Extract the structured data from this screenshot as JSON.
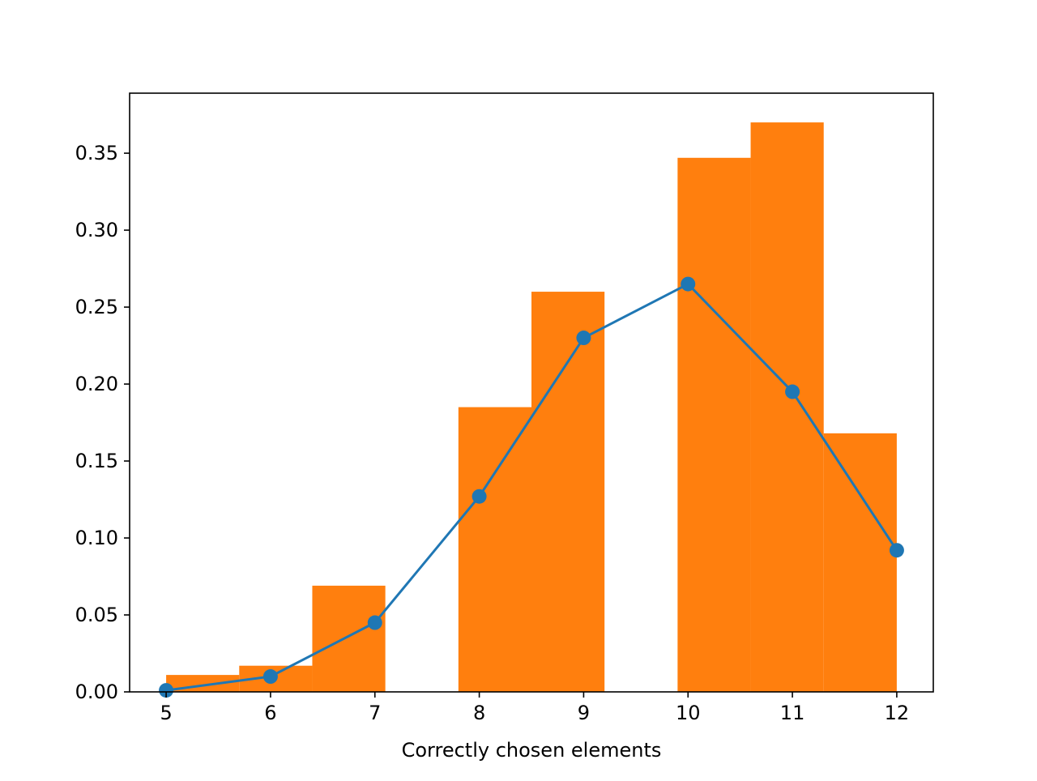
{
  "chart_data": {
    "type": "bar",
    "title": "",
    "xlabel": "Correctly chosen elements",
    "ylabel": "",
    "xlim": [
      4.65,
      12.35
    ],
    "ylim": [
      0,
      0.389
    ],
    "grid": false,
    "x_ticks": [
      {
        "value": 5,
        "label": "5"
      },
      {
        "value": 6,
        "label": "6"
      },
      {
        "value": 7,
        "label": "7"
      },
      {
        "value": 8,
        "label": "8"
      },
      {
        "value": 9,
        "label": "9"
      },
      {
        "value": 10,
        "label": "10"
      },
      {
        "value": 11,
        "label": "11"
      },
      {
        "value": 12,
        "label": "12"
      }
    ],
    "y_ticks": [
      {
        "value": 0.0,
        "label": "0.00"
      },
      {
        "value": 0.05,
        "label": "0.05"
      },
      {
        "value": 0.1,
        "label": "0.10"
      },
      {
        "value": 0.15,
        "label": "0.15"
      },
      {
        "value": 0.2,
        "label": "0.20"
      },
      {
        "value": 0.25,
        "label": "0.25"
      },
      {
        "value": 0.3,
        "label": "0.30"
      },
      {
        "value": 0.35,
        "label": "0.35"
      }
    ],
    "series": [
      {
        "kind": "histogram",
        "color": "#ff7f0e",
        "bins": [
          {
            "x0": 5.0,
            "x1": 5.7,
            "value": 0.011
          },
          {
            "x0": 5.7,
            "x1": 6.4,
            "value": 0.017
          },
          {
            "x0": 6.4,
            "x1": 7.1,
            "value": 0.069
          },
          {
            "x0": 7.1,
            "x1": 7.8,
            "value": 0.0
          },
          {
            "x0": 7.8,
            "x1": 8.5,
            "value": 0.185
          },
          {
            "x0": 8.5,
            "x1": 9.2,
            "value": 0.26
          },
          {
            "x0": 9.2,
            "x1": 9.9,
            "value": 0.0
          },
          {
            "x0": 9.9,
            "x1": 10.6,
            "value": 0.347
          },
          {
            "x0": 10.6,
            "x1": 11.3,
            "value": 0.37
          },
          {
            "x0": 11.3,
            "x1": 12.0,
            "value": 0.168
          }
        ]
      },
      {
        "kind": "line",
        "color": "#1f77b4",
        "marker": "circle",
        "x": [
          5,
          6,
          7,
          8,
          9,
          10,
          11,
          12
        ],
        "y": [
          0.001,
          0.01,
          0.045,
          0.127,
          0.23,
          0.265,
          0.195,
          0.092
        ]
      }
    ]
  }
}
